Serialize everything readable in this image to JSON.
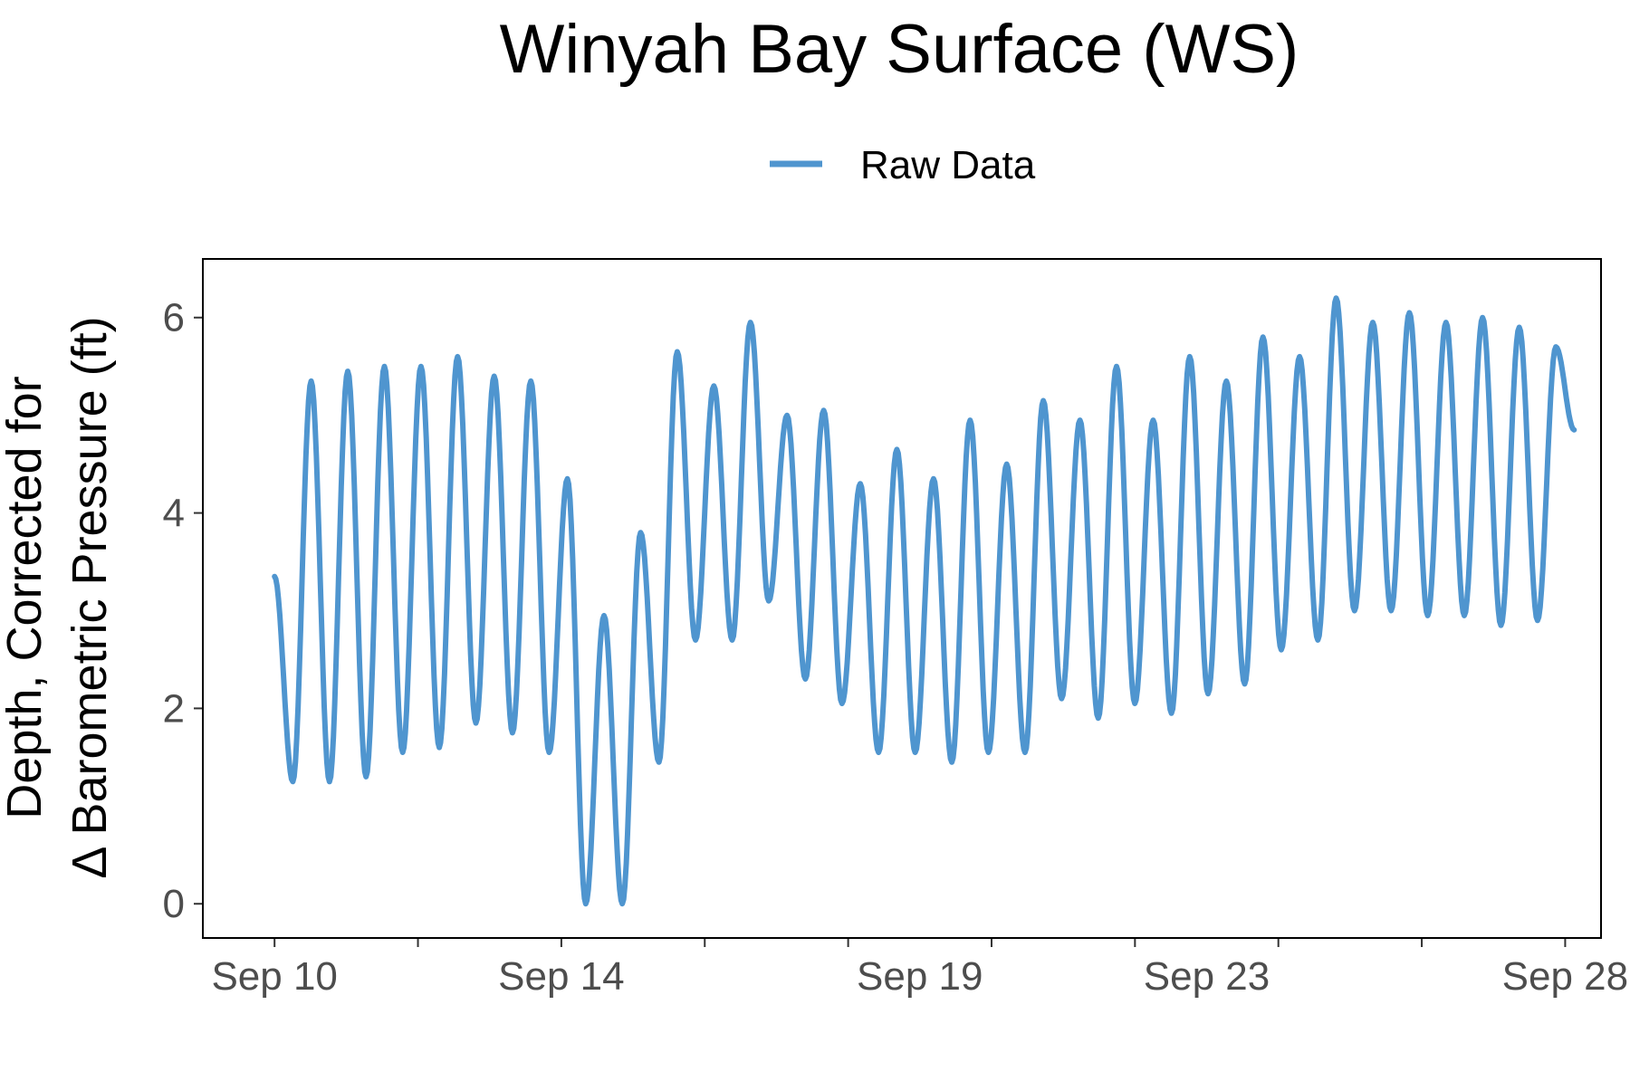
{
  "chart_data": {
    "type": "line",
    "title": "Winyah Bay Surface (WS)",
    "xlabel": "",
    "ylabel_line1": "Depth, Corrected for",
    "ylabel_line2": "Δ Barometric Pressure (ft)",
    "xlim": [
      "2023-09-09T00:00",
      "2023-09-28T12:00"
    ],
    "ylim": [
      -0.35,
      6.6
    ],
    "x_ticks": [
      {
        "label": "Sep 10",
        "date": "2023-09-10"
      },
      {
        "label": "Sep 14",
        "date": "2023-09-14"
      },
      {
        "label": "Sep 19",
        "date": "2023-09-19"
      },
      {
        "label": "Sep 23",
        "date": "2023-09-23"
      },
      {
        "label": "Sep 28",
        "date": "2023-09-28"
      }
    ],
    "y_ticks": [
      0,
      2,
      4,
      6
    ],
    "grid": false,
    "legend_position": "top",
    "series": [
      {
        "name": "Raw Data",
        "color": "#4f95cf",
        "start": "2023-09-10T00:00",
        "end": "2023-09-28T03:00",
        "extrema": [
          3.35,
          1.25,
          5.35,
          1.25,
          5.45,
          1.3,
          5.5,
          1.55,
          5.5,
          1.6,
          5.6,
          1.85,
          5.4,
          1.75,
          5.35,
          1.55,
          4.35,
          0.0,
          2.95,
          0.0,
          3.8,
          1.45,
          5.65,
          2.7,
          5.3,
          2.7,
          5.95,
          3.1,
          5.0,
          2.3,
          5.05,
          2.05,
          4.3,
          1.55,
          4.65,
          1.55,
          4.35,
          1.45,
          4.95,
          1.55,
          4.5,
          1.55,
          5.15,
          2.1,
          4.95,
          1.9,
          5.5,
          2.05,
          4.95,
          1.95,
          5.6,
          2.15,
          5.35,
          2.25,
          5.8,
          2.6,
          5.6,
          2.7,
          6.2,
          3.0,
          5.95,
          3.0,
          6.05,
          2.95,
          5.95,
          2.95,
          6.0,
          2.85,
          5.9,
          2.9,
          5.7,
          4.85
        ]
      }
    ]
  }
}
